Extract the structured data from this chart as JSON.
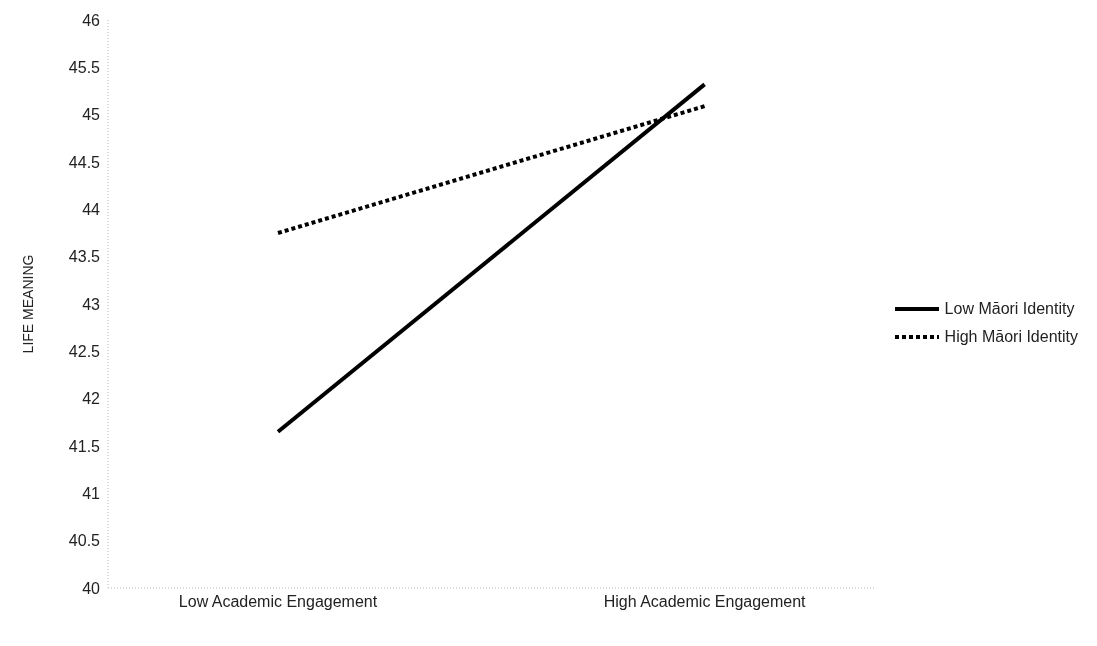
{
  "chart_data": {
    "type": "line",
    "ylabel": "LIFE MEANING",
    "categories": [
      "Low Academic Engagement",
      "High Academic Engagement"
    ],
    "series": [
      {
        "name": "Low Māori Identity",
        "color": "#000000",
        "values": [
          41.65,
          45.32
        ],
        "line_style": "solid"
      },
      {
        "name": "High Māori Identity",
        "color": "#000000",
        "values": [
          43.75,
          45.09
        ],
        "line_style": "dotted"
      }
    ],
    "ylim": [
      40,
      46
    ],
    "yticks": [
      40,
      40.5,
      41,
      41.5,
      42,
      42.5,
      43,
      43.5,
      44,
      44.5,
      45,
      45.5,
      46
    ],
    "grid": false,
    "legend": "right",
    "marker": "none"
  }
}
